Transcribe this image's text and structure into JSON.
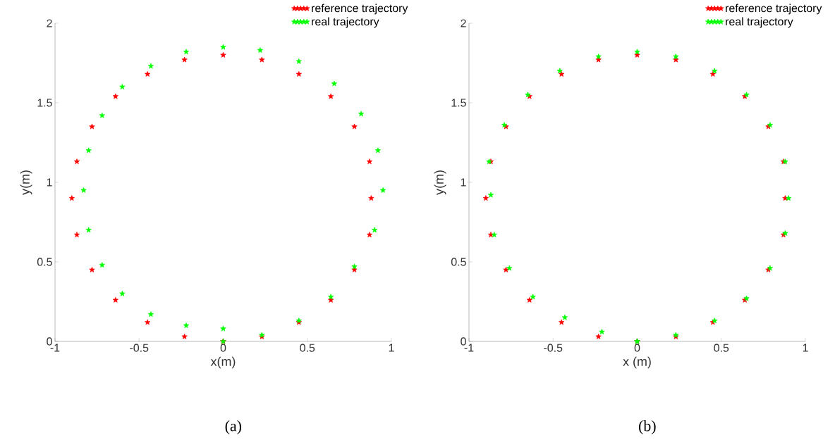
{
  "chart_data": [
    {
      "type": "scatter",
      "xlabel": "x(m)",
      "ylabel": "y(m)",
      "xlim": [
        -1,
        1
      ],
      "ylim": [
        0,
        2
      ],
      "xticks": [
        -1,
        -0.5,
        0,
        0.5,
        1
      ],
      "yticks": [
        0,
        0.5,
        1,
        1.5,
        2
      ],
      "marker": "star",
      "legend": "top right",
      "annotations": [
        "(a)"
      ],
      "series": [
        {
          "name": "reference trajectory",
          "color": "#ff0000",
          "x": [
            0,
            0.23,
            0.45,
            0.64,
            0.78,
            0.87,
            0.88,
            0.87,
            0.78,
            0.64,
            0.45,
            0.23,
            0,
            -0.23,
            -0.45,
            -0.64,
            -0.78,
            -0.87,
            -0.9,
            -0.87,
            -0.78,
            -0.64,
            -0.45,
            -0.23,
            0
          ],
          "values": [
            0,
            0.03,
            0.12,
            0.26,
            0.45,
            0.67,
            0.9,
            1.13,
            1.35,
            1.54,
            1.68,
            1.77,
            1.8,
            1.77,
            1.68,
            1.54,
            1.35,
            1.13,
            0.9,
            0.67,
            0.45,
            0.26,
            0.12,
            0.03,
            0
          ]
        },
        {
          "name": "real  trajectory",
          "color": "#00ff00",
          "x": [
            0,
            0.23,
            0.45,
            0.64,
            0.78,
            0.9,
            0.95,
            0.92,
            0.82,
            0.66,
            0.45,
            0.22,
            0,
            -0.22,
            -0.43,
            -0.6,
            -0.72,
            -0.8,
            -0.83,
            -0.8,
            -0.72,
            -0.6,
            -0.43,
            -0.22,
            0
          ],
          "values": [
            0,
            0.04,
            0.13,
            0.28,
            0.47,
            0.7,
            0.95,
            1.2,
            1.43,
            1.62,
            1.76,
            1.83,
            1.85,
            1.82,
            1.73,
            1.6,
            1.42,
            1.2,
            0.95,
            0.7,
            0.48,
            0.3,
            0.17,
            0.1,
            0.08
          ]
        }
      ]
    },
    {
      "type": "scatter",
      "xlabel": "x (m)",
      "ylabel": "y(m)",
      "xlim": [
        -1,
        1
      ],
      "ylim": [
        0,
        2
      ],
      "xticks": [
        -1,
        -0.5,
        0,
        0.5,
        1
      ],
      "yticks": [
        0,
        0.5,
        1,
        1.5,
        2
      ],
      "marker": "star",
      "legend": "top right",
      "annotations": [
        "(b)"
      ],
      "series": [
        {
          "name": "reference trajectory",
          "color": "#ff0000",
          "x": [
            0,
            0.23,
            0.45,
            0.64,
            0.78,
            0.87,
            0.88,
            0.87,
            0.78,
            0.64,
            0.45,
            0.23,
            0,
            -0.23,
            -0.45,
            -0.64,
            -0.78,
            -0.87,
            -0.9,
            -0.87,
            -0.78,
            -0.64,
            -0.45,
            -0.23,
            0
          ],
          "values": [
            0,
            0.03,
            0.12,
            0.26,
            0.45,
            0.67,
            0.9,
            1.13,
            1.35,
            1.54,
            1.68,
            1.77,
            1.8,
            1.77,
            1.68,
            1.54,
            1.35,
            1.13,
            0.9,
            0.67,
            0.45,
            0.26,
            0.12,
            0.03,
            0
          ]
        },
        {
          "name": "real  trajectory",
          "color": "#00ff00",
          "x": [
            0,
            0.23,
            0.46,
            0.65,
            0.79,
            0.88,
            0.9,
            0.88,
            0.79,
            0.65,
            0.46,
            0.23,
            0,
            -0.23,
            -0.46,
            -0.65,
            -0.79,
            -0.88,
            -0.87,
            -0.85,
            -0.76,
            -0.62,
            -0.43,
            -0.21,
            0
          ],
          "values": [
            0,
            0.04,
            0.13,
            0.27,
            0.46,
            0.68,
            0.9,
            1.13,
            1.36,
            1.55,
            1.7,
            1.79,
            1.82,
            1.79,
            1.7,
            1.55,
            1.36,
            1.13,
            0.92,
            0.67,
            0.46,
            0.28,
            0.15,
            0.06,
            0
          ]
        }
      ]
    }
  ]
}
